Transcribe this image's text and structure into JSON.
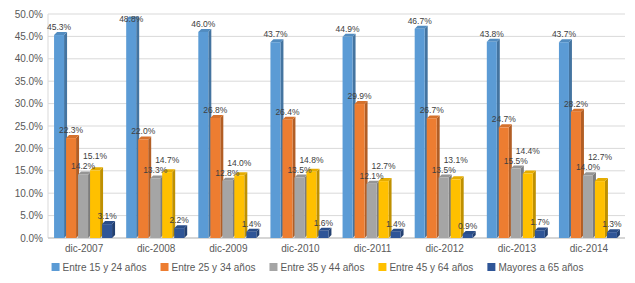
{
  "chart_data": {
    "type": "bar",
    "categories": [
      "dic-2007",
      "dic-2008",
      "dic-2009",
      "dic-2010",
      "dic-2011",
      "dic-2012",
      "dic-2013",
      "dic-2014"
    ],
    "series": [
      {
        "name": "Entre 15 y 24 años",
        "color": "#5b9bd5",
        "values": [
          45.3,
          48.8,
          46.0,
          43.7,
          44.9,
          46.7,
          43.8,
          43.7
        ],
        "value_labels": [
          "45.3%",
          "48.8%",
          "46.0%",
          "43.7%",
          "44.9%",
          "46.7%",
          "43.8%",
          "43.7%"
        ]
      },
      {
        "name": "Entre 25 y 34 años",
        "color": "#ed7d31",
        "values": [
          22.3,
          22.0,
          26.8,
          26.4,
          29.9,
          26.7,
          24.7,
          28.2
        ],
        "value_labels": [
          "22.3%",
          "22.0%",
          "26.8%",
          "26.4%",
          "29.9%",
          "26.7%",
          "24.7%",
          "28.2%"
        ]
      },
      {
        "name": "Entre 35 y 44 años",
        "color": "#a5a5a5",
        "values": [
          14.2,
          13.3,
          12.8,
          13.5,
          12.1,
          13.5,
          15.5,
          14.0
        ],
        "value_labels": [
          "14.2%",
          "13.3%",
          "12.8%",
          "13.5%",
          "12.1%",
          "13.5%",
          "15.5%",
          "14.0%"
        ]
      },
      {
        "name": "Entre 45 y 64 años",
        "color": "#ffc000",
        "values": [
          15.1,
          14.7,
          14.0,
          14.8,
          12.7,
          13.1,
          14.4,
          12.7
        ],
        "value_labels": [
          "15.1%",
          "14.7%",
          "14.0%",
          "14.8%",
          "12.7%",
          "13.1%",
          "14.4%",
          "12.7%"
        ]
      },
      {
        "name": "Mayores a 65 años",
        "color": "#2f5597",
        "values": [
          3.1,
          2.2,
          1.4,
          1.6,
          1.4,
          0.9,
          1.7,
          1.3
        ],
        "value_labels": [
          "3.1%",
          "2.2%",
          "1.4%",
          "1.6%",
          "1.4%",
          "0.9%",
          "1.7%",
          "1.3%"
        ]
      }
    ],
    "ylim": [
      0,
      50
    ],
    "yticks": [
      {
        "value": 0,
        "label": "0.0%"
      },
      {
        "value": 5,
        "label": "5.0%"
      },
      {
        "value": 10,
        "label": "10.0%"
      },
      {
        "value": 15,
        "label": "15.0%"
      },
      {
        "value": 20,
        "label": "20.0%"
      },
      {
        "value": 25,
        "label": "25.0%"
      },
      {
        "value": 30,
        "label": "30.0%"
      },
      {
        "value": 35,
        "label": "35.0%"
      },
      {
        "value": 40,
        "label": "40.0%"
      },
      {
        "value": 45,
        "label": "45.0%"
      },
      {
        "value": 50,
        "label": "50.0%"
      }
    ],
    "grid": true,
    "legend": "bottom",
    "data_labels": true
  }
}
